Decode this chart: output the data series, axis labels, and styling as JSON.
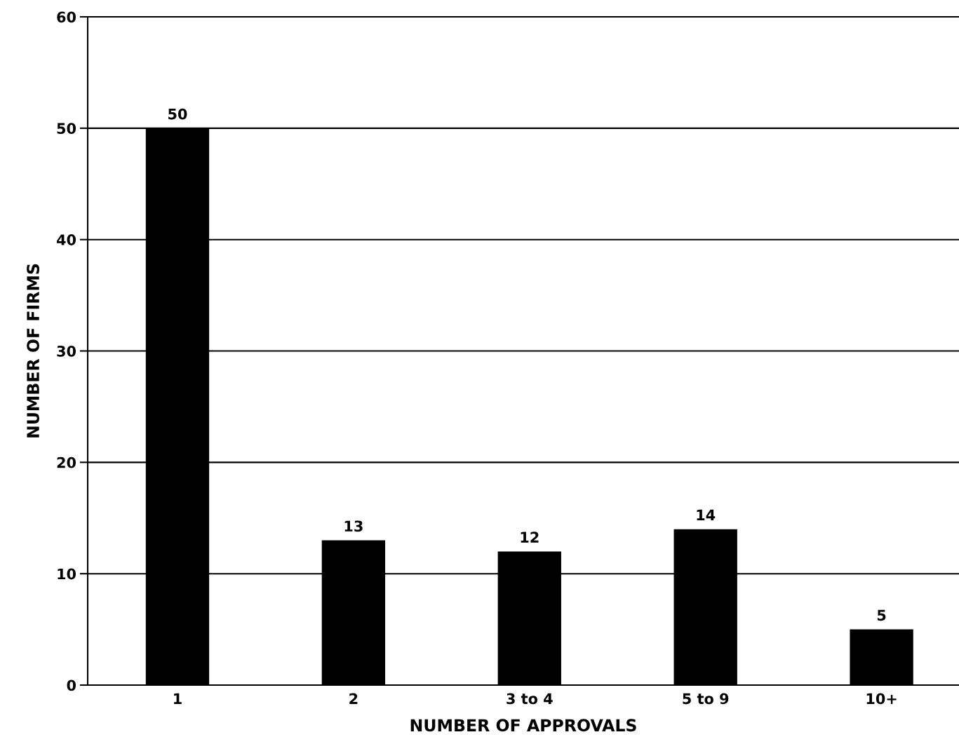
{
  "chart_data": {
    "type": "bar",
    "xlabel": "NUMBER OF APPROVALS",
    "ylabel": "NUMBER OF FIRMS",
    "categories": [
      "1",
      "2",
      "3 to 4",
      "5 to 9",
      "10+"
    ],
    "values": [
      50,
      13,
      12,
      14,
      5
    ],
    "color": "#000000",
    "ylim": [
      0,
      60
    ],
    "yticks": [
      0,
      10,
      20,
      30,
      40,
      50,
      60
    ],
    "grid": "y",
    "data_labels": true
  }
}
